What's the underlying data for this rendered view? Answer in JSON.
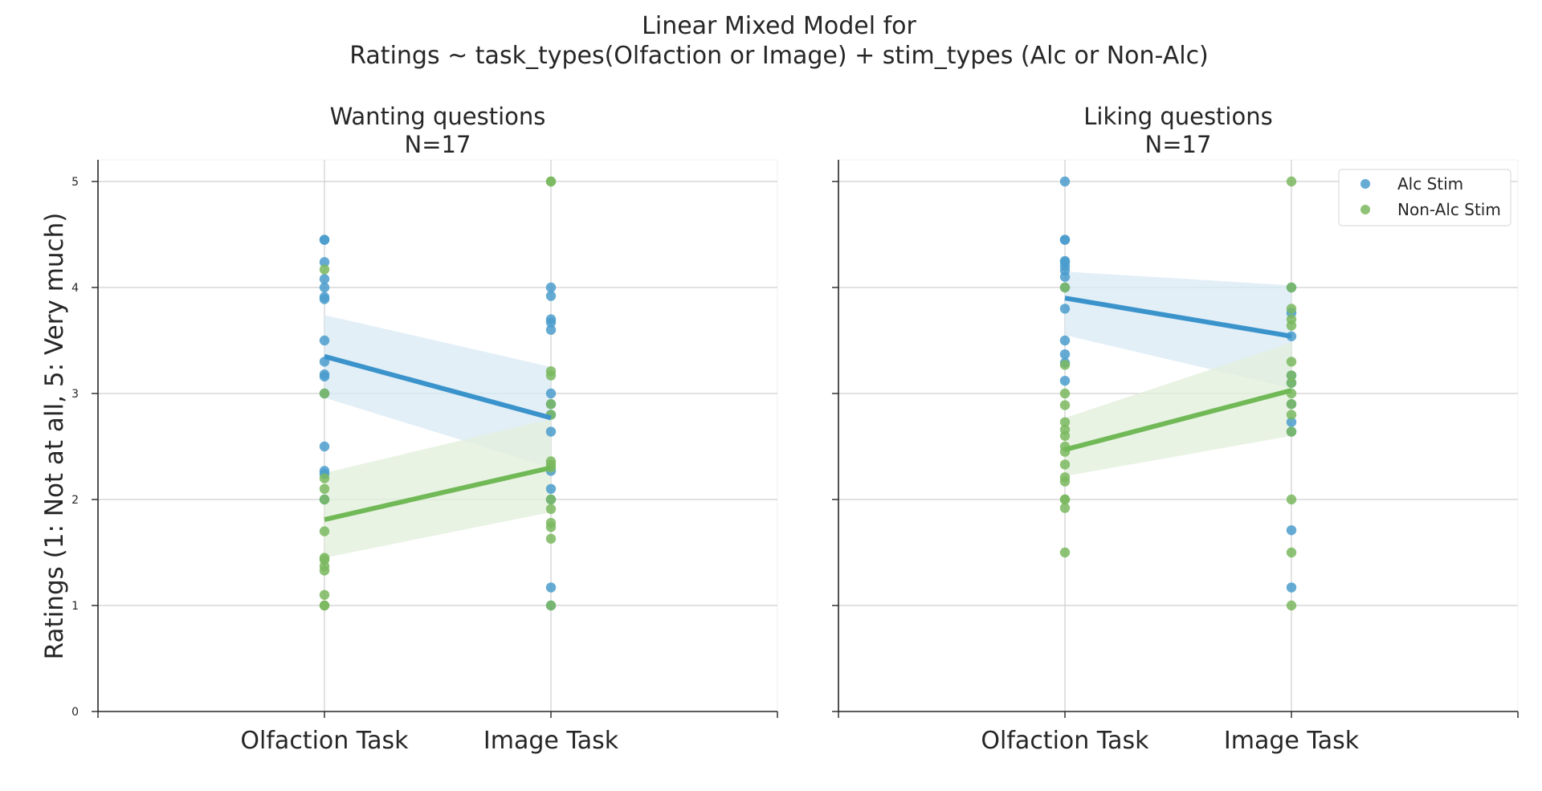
{
  "figure": {
    "title_line1": "Linear Mixed Model for",
    "title_line2": "Ratings ~ task_types(Olfaction or Image) + stim_types (Alc or Non-Alc)",
    "ylabel": "Ratings (1: Not at all, 5: Very much)"
  },
  "legend": {
    "placement": "top-right (right panel)",
    "entries": [
      {
        "label": "Alc Stim",
        "color": "#4a9ccd"
      },
      {
        "label": "Non-Alc Stim",
        "color": "#7ab85f"
      }
    ]
  },
  "colors": {
    "alc": "#4a9ccd",
    "alc_line": "#3b93cb",
    "alc_band": "#d8e9f4",
    "nonalc": "#7ab85f",
    "nonalc_line": "#71b957",
    "nonalc_band": "#e2efdb",
    "grid": "#cfcfcf",
    "axis": "#262626"
  },
  "chart_data": [
    {
      "type": "scatter",
      "title_line1": "Wanting questions",
      "title_line2": "N=17",
      "categories": [
        "Olfaction Task",
        "Image Task"
      ],
      "yticks": [
        0,
        1,
        2,
        3,
        4,
        5
      ],
      "ylim": [
        0,
        5.2
      ],
      "grid": true,
      "series": [
        {
          "name": "Alc Stim",
          "points": {
            "Olfaction Task": [
              4.45,
              4.45,
              4.24,
              4.08,
              4.0,
              3.91,
              3.89,
              3.5,
              3.3,
              3.18,
              3.16,
              3.0,
              2.5,
              2.27,
              2.24,
              2.0
            ],
            "Image Task": [
              4.0,
              3.92,
              3.7,
              3.67,
              3.6,
              3.0,
              2.9,
              2.8,
              2.64,
              2.27,
              2.1,
              2.0,
              1.17,
              1.0
            ]
          },
          "fit": {
            "Olfaction Task": 3.35,
            "Image Task": 2.77
          },
          "ci": {
            "Olfaction Task": [
              2.96,
              3.74
            ],
            "Image Task": [
              2.3,
              3.25
            ]
          }
        },
        {
          "name": "Non-Alc Stim",
          "points": {
            "Olfaction Task": [
              4.17,
              3.0,
              2.2,
              2.1,
              2.0,
              1.7,
              1.45,
              1.43,
              1.37,
              1.33,
              1.1,
              1.0,
              1.0
            ],
            "Image Task": [
              5.0,
              5.0,
              3.21,
              3.17,
              2.9,
              2.8,
              2.36,
              2.33,
              2.3,
              2.0,
              1.91,
              1.78,
              1.74,
              1.63,
              1.0
            ]
          },
          "fit": {
            "Olfaction Task": 1.81,
            "Image Task": 2.3
          },
          "ci": {
            "Olfaction Task": [
              1.45,
              2.25
            ],
            "Image Task": [
              1.88,
              2.76
            ]
          }
        }
      ]
    },
    {
      "type": "scatter",
      "title_line1": "Liking questions",
      "title_line2": "N=17",
      "categories": [
        "Olfaction Task",
        "Image Task"
      ],
      "yticks": [
        0,
        1,
        2,
        3,
        4,
        5
      ],
      "ylim": [
        0,
        5.2
      ],
      "grid": true,
      "series": [
        {
          "name": "Alc Stim",
          "points": {
            "Olfaction Task": [
              5.0,
              4.45,
              4.45,
              4.25,
              4.24,
              4.2,
              4.16,
              4.1,
              4.0,
              3.8,
              3.5,
              3.37,
              3.29,
              3.12
            ],
            "Image Task": [
              4.0,
              3.76,
              3.54,
              3.17,
              3.1,
              2.9,
              2.73,
              2.64,
              1.71,
              1.17
            ]
          },
          "fit": {
            "Olfaction Task": 3.9,
            "Image Task": 3.54
          },
          "ci": {
            "Olfaction Task": [
              3.55,
              4.15
            ],
            "Image Task": [
              3.05,
              4.02
            ]
          }
        },
        {
          "name": "Non-Alc Stim",
          "points": {
            "Olfaction Task": [
              4.0,
              3.27,
              3.0,
              2.89,
              2.73,
              2.66,
              2.6,
              2.5,
              2.45,
              2.33,
              2.21,
              2.17,
              2.0,
              2.0,
              1.92,
              1.5
            ],
            "Image Task": [
              5.0,
              4.0,
              3.8,
              3.7,
              3.64,
              3.3,
              3.17,
              3.1,
              3.0,
              2.9,
              2.8,
              2.64,
              2.0,
              1.5,
              1.0
            ]
          },
          "fit": {
            "Olfaction Task": 2.47,
            "Image Task": 3.03
          },
          "ci": {
            "Olfaction Task": [
              2.22,
              2.77
            ],
            "Image Task": [
              2.6,
              3.48
            ]
          }
        }
      ]
    }
  ]
}
